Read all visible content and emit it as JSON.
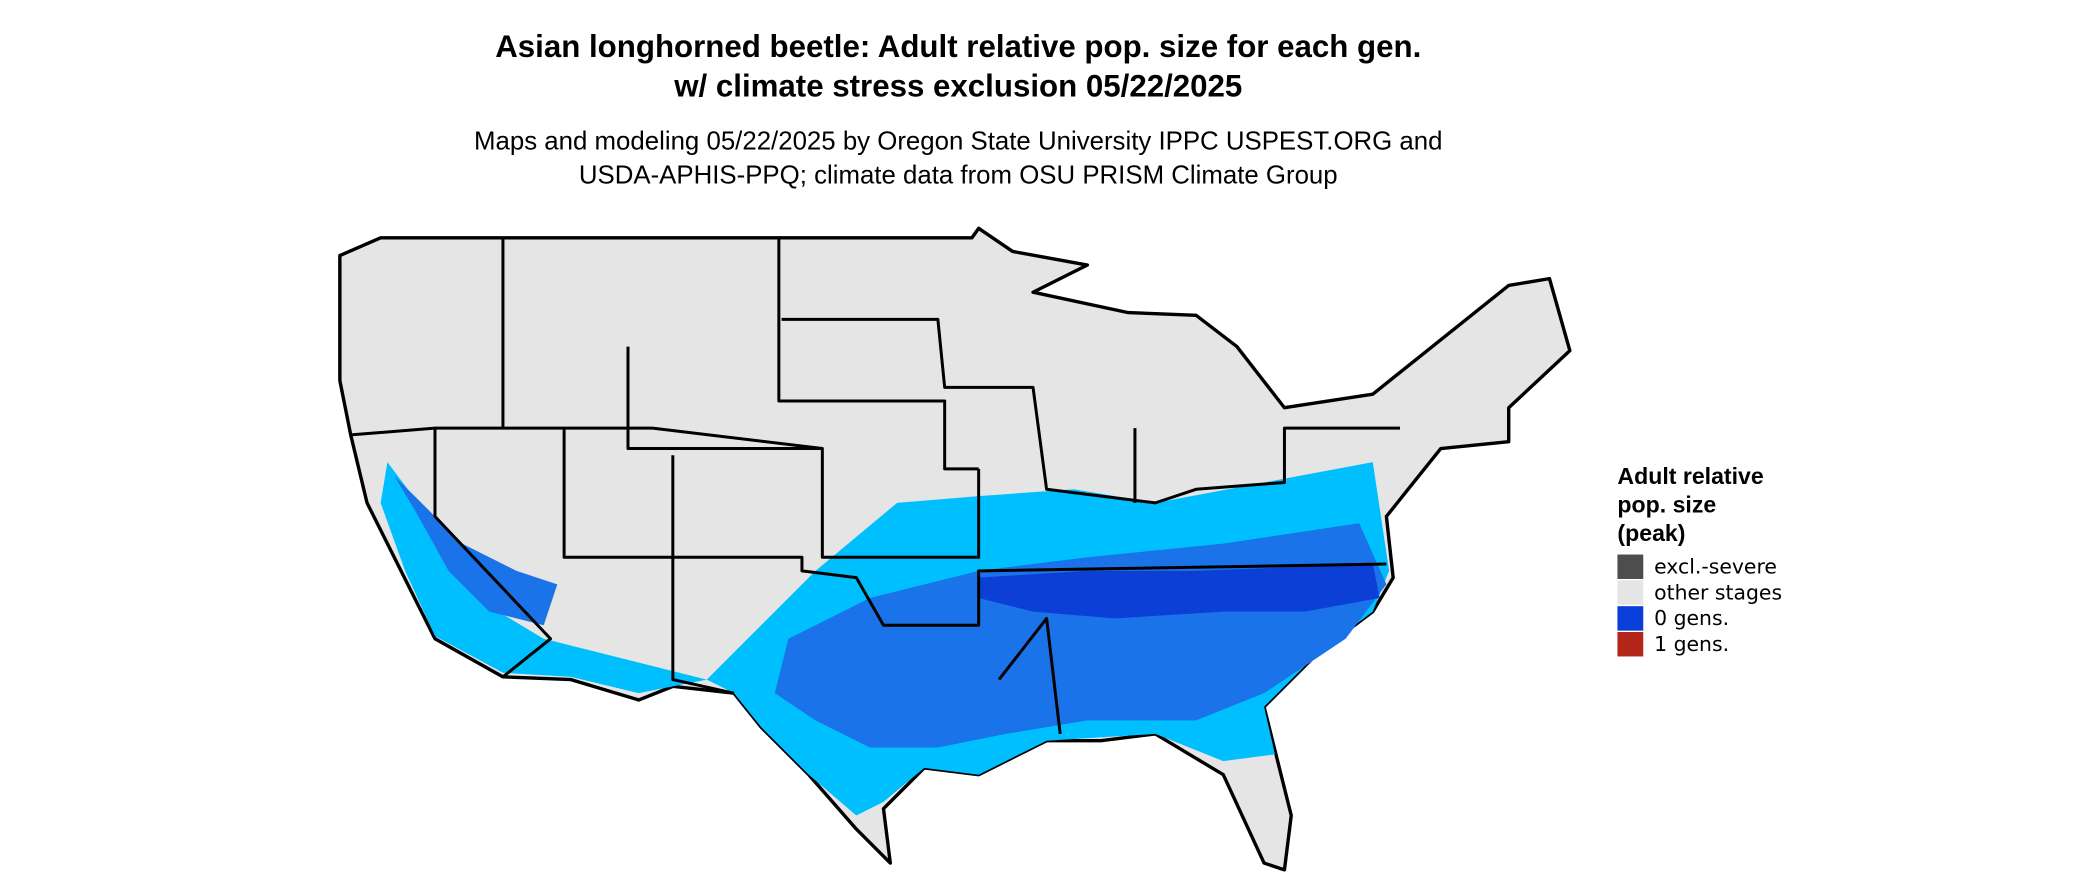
{
  "title": [
    "Asian longhorned beetle: Adult relative pop. size for each gen.",
    "w/ climate stress exclusion 05/22/2025"
  ],
  "subtitle": [
    "Maps and modeling 05/22/2025 by Oregon State University IPPC USPEST.ORG and",
    "USDA-APHIS-PPQ; climate data from OSU PRISM Climate Group"
  ],
  "legend": {
    "title": [
      "Adult relative",
      "pop. size",
      "(peak)"
    ],
    "items": [
      {
        "label": "excl.-severe",
        "color": "#4d4d4d"
      },
      {
        "label": "other stages",
        "color": "#e5e5e5"
      },
      {
        "label": "0 gens.",
        "color": "#0a3ed8"
      },
      {
        "label": "1 gens.",
        "color": "#b22518"
      }
    ]
  }
}
